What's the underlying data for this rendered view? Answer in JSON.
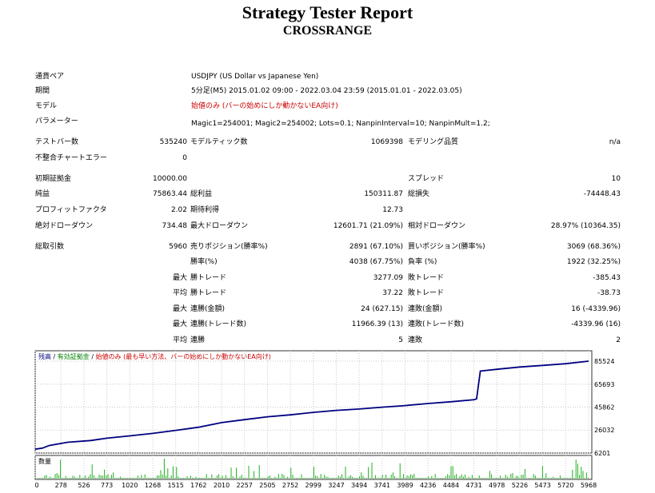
{
  "report": {
    "title": "Strategy Tester Report",
    "subtitle": "CROSSRANGE"
  },
  "info": {
    "pair_label": "通貨ペア",
    "pair_value": "USDJPY (US Dollar vs Japanese Yen)",
    "period_label": "期間",
    "period_value": "5分足(M5) 2015.01.02 09:00 - 2022.03.04 23:59 (2015.01.01 - 2022.03.05)",
    "model_label": "モデル",
    "model_value": "始値のみ (バーの始めにしか動かないEA向け)",
    "params_label": "パラメーター",
    "params_value": "Magic1=254001; Magic2=254002; Lots=0.1; NanpinInterval=10; NanpinMult=1.2;"
  },
  "stats": {
    "test_bars_label": "テストバー数",
    "test_bars_value": "535240",
    "model_ticks_label": "モデルティック数",
    "model_ticks_value": "1069398",
    "model_quality_label": "モデリング品質",
    "model_quality_value": "n/a",
    "mismatch_label": "不整合チャートエラー",
    "mismatch_value": "0",
    "initial_deposit_label": "初期証拠金",
    "initial_deposit_value": "10000.00",
    "spread_label": "スプレッド",
    "spread_value": "10",
    "net_profit_label": "純益",
    "net_profit_value": "75863.44",
    "gross_profit_label": "総利益",
    "gross_profit_value": "150311.87",
    "gross_loss_label": "総損失",
    "gross_loss_value": "-74448.43",
    "profit_factor_label": "プロフィットファクタ",
    "profit_factor_value": "2.02",
    "expected_payoff_label": "期待利得",
    "expected_payoff_value": "12.73",
    "abs_dd_label": "絶対ドローダウン",
    "abs_dd_value": "734.48",
    "max_dd_label": "最大ドローダウン",
    "max_dd_value": "12601.71 (21.09%)",
    "rel_dd_label": "相対ドローダウン",
    "rel_dd_value": "28.97% (10364.35)",
    "total_trades_label": "総取引数",
    "total_trades_value": "5960",
    "short_pos_label": "売りポジション(勝率%)",
    "short_pos_value": "2891 (67.10%)",
    "long_pos_label": "買いポジション(勝率%)",
    "long_pos_value": "3069 (68.36%)",
    "win_rate_label": "勝率(%)",
    "win_rate_value": "4038 (67.75%)",
    "loss_rate_label": "負率 (%)",
    "loss_rate_value": "1922 (32.25%)",
    "max_label": "最大",
    "largest_win_label": "勝トレード",
    "largest_win_value": "3277.09",
    "largest_loss_label": "敗トレード",
    "largest_loss_value": "-385.43",
    "avg_label": "平均",
    "avg_win_label": "勝トレード",
    "avg_win_value": "37.22",
    "avg_loss_label": "敗トレード",
    "avg_loss_value": "-38.73",
    "max2_label": "最大",
    "max_consec_wins_label": "連勝(金額)",
    "max_consec_wins_value": "24 (627.15)",
    "max_consec_losses_label": "連敗(金額)",
    "max_consec_losses_value": "16 (-4339.96)",
    "max3_label": "最大",
    "max_consec_profit_label": "連勝(トレード数)",
    "max_consec_profit_value": "11966.39 (13)",
    "max_consec_loss_label": "連敗(トレード数)",
    "max_consec_loss_value": "-4339.96 (16)",
    "avg2_label": "平均",
    "avg_consec_wins_label": "連勝",
    "avg_consec_wins_value": "5",
    "avg_consec_losses_label": "連敗",
    "avg_consec_losses_value": "2"
  },
  "chart_data": {
    "type": "line",
    "legend": {
      "balance": "残高",
      "sep1": " / ",
      "equity": "有効証拠金",
      "sep2": " / ",
      "model": "始値のみ (最も早い方法、バーの始めにしか動かないEA向け)"
    },
    "volume_label": "数量",
    "x_ticks": [
      "0",
      "278",
      "526",
      "773",
      "1020",
      "1268",
      "1515",
      "1762",
      "2010",
      "2257",
      "2505",
      "2752",
      "2999",
      "3247",
      "3494",
      "3741",
      "3989",
      "4236",
      "4484",
      "4731",
      "4978",
      "5226",
      "5473",
      "5720",
      "5968"
    ],
    "y_ticks": [
      "85524",
      "65693",
      "45862",
      "26032",
      "6201"
    ],
    "ylim": [
      6201,
      85524
    ],
    "xlim": [
      0,
      5968
    ],
    "series": [
      {
        "values": [
          [
            0,
            9500
          ],
          [
            80,
            10500
          ],
          [
            150,
            12700
          ],
          [
            350,
            15500
          ],
          [
            600,
            17000
          ],
          [
            773,
            19000
          ],
          [
            1020,
            21000
          ],
          [
            1268,
            23200
          ],
          [
            1515,
            25800
          ],
          [
            1762,
            28500
          ],
          [
            2010,
            32500
          ],
          [
            2257,
            35000
          ],
          [
            2505,
            37500
          ],
          [
            2752,
            39200
          ],
          [
            2999,
            41300
          ],
          [
            3247,
            43000
          ],
          [
            3494,
            44200
          ],
          [
            3741,
            45800
          ],
          [
            3989,
            47200
          ],
          [
            4236,
            49000
          ],
          [
            4484,
            50500
          ],
          [
            4731,
            52200
          ],
          [
            4760,
            53000
          ],
          [
            4800,
            77000
          ],
          [
            4978,
            78500
          ],
          [
            5226,
            80500
          ],
          [
            5473,
            81900
          ],
          [
            5720,
            83300
          ],
          [
            5968,
            85524
          ]
        ]
      }
    ],
    "colors": {
      "balance": "#000080",
      "equity": "#008000",
      "model": "#cc0000",
      "volume": "#20b020"
    }
  }
}
